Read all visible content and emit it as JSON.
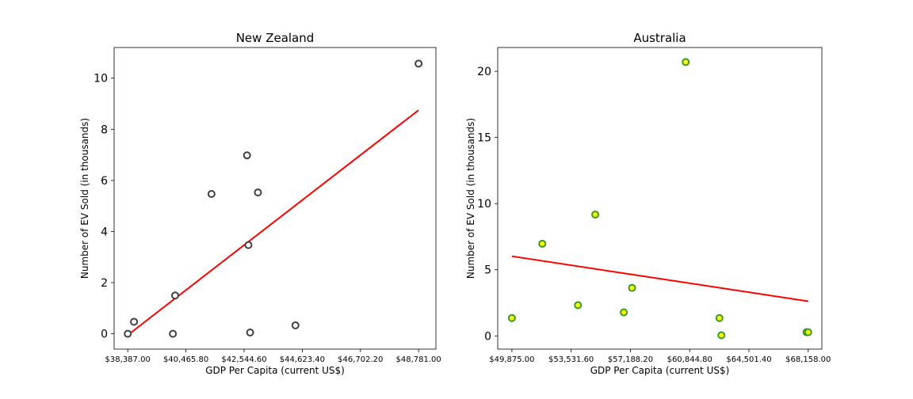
{
  "chart_data": [
    {
      "type": "scatter",
      "title": "New Zealand",
      "xlabel": "GDP Per Capita (current US$)",
      "ylabel": "Number of EV Sold (in thousands)",
      "x_ticks": [
        38387.0,
        40465.8,
        42544.6,
        44623.4,
        46702.2,
        48781.0
      ],
      "x_tick_labels": [
        "$38,387.00",
        "$40,465.80",
        "$42,544.60",
        "$44,623.40",
        "$46,702.20",
        "$48,781.00"
      ],
      "y_ticks": [
        0,
        2,
        4,
        6,
        8,
        10
      ],
      "y_tick_labels": [
        "0",
        "2",
        "4",
        "6",
        "8",
        "10"
      ],
      "xlim": [
        37900,
        49400
      ],
      "ylim": [
        -0.6,
        11.2
      ],
      "grid": false,
      "marker_face": "#ffffff",
      "marker_edge": "#404040",
      "trend_color": "#ff0000",
      "points": [
        {
          "x": 38387,
          "y": 0.0
        },
        {
          "x": 38610,
          "y": 0.47
        },
        {
          "x": 40000,
          "y": 0.0
        },
        {
          "x": 40080,
          "y": 1.5
        },
        {
          "x": 41380,
          "y": 5.47
        },
        {
          "x": 42650,
          "y": 6.98
        },
        {
          "x": 42700,
          "y": 3.47
        },
        {
          "x": 42760,
          "y": 0.05
        },
        {
          "x": 43040,
          "y": 5.53
        },
        {
          "x": 44380,
          "y": 0.33
        },
        {
          "x": 48781,
          "y": 10.57
        }
      ],
      "trend": {
        "x": [
          38387,
          48781
        ],
        "y": [
          -0.05,
          8.75
        ]
      }
    },
    {
      "type": "scatter",
      "title": "Australia",
      "xlabel": "GDP Per Capita (current US$)",
      "ylabel": "Number of EV Sold (in thousands)",
      "x_ticks": [
        49875.0,
        53531.6,
        57188.2,
        60844.8,
        64501.4,
        68158.0
      ],
      "x_tick_labels": [
        "$49,875.00",
        "$53,531.60",
        "$57,188.20",
        "$60,844.80",
        "$64,501.40",
        "$68,158.00"
      ],
      "y_ticks": [
        0,
        5,
        10,
        15,
        20
      ],
      "y_tick_labels": [
        "0",
        "5",
        "10",
        "15",
        "20"
      ],
      "xlim": [
        49000,
        69000
      ],
      "ylim": [
        -1.0,
        21.8
      ],
      "grid": false,
      "marker_face": "#ffff00",
      "marker_edge": "#3a9a20",
      "trend_color": "#ff0000",
      "points": [
        {
          "x": 49875,
          "y": 1.35
        },
        {
          "x": 51750,
          "y": 6.97
        },
        {
          "x": 53950,
          "y": 2.32
        },
        {
          "x": 55020,
          "y": 9.17
        },
        {
          "x": 56780,
          "y": 1.78
        },
        {
          "x": 57290,
          "y": 3.63
        },
        {
          "x": 60600,
          "y": 20.7
        },
        {
          "x": 62680,
          "y": 1.35
        },
        {
          "x": 62800,
          "y": 0.05
        },
        {
          "x": 68050,
          "y": 0.28
        },
        {
          "x": 68158,
          "y": 0.28
        }
      ],
      "trend": {
        "x": [
          49875,
          68158
        ],
        "y": [
          6.02,
          2.62
        ]
      }
    }
  ]
}
